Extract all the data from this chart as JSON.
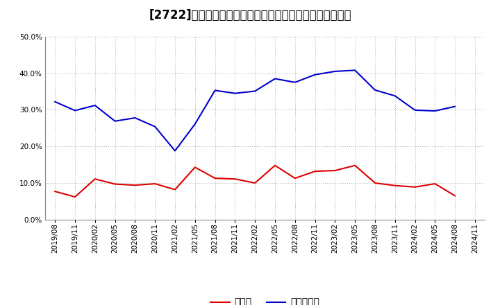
{
  "title": "[2722]　現顔金、有利子負債の総資産に対する比率の推移",
  "x_labels": [
    "2019/08",
    "2019/11",
    "2020/02",
    "2020/05",
    "2020/08",
    "2020/11",
    "2021/02",
    "2021/05",
    "2021/08",
    "2021/11",
    "2022/02",
    "2022/05",
    "2022/08",
    "2022/11",
    "2023/02",
    "2023/05",
    "2023/08",
    "2023/11",
    "2024/02",
    "2024/05",
    "2024/08",
    "2024/11"
  ],
  "cash": [
    0.077,
    0.062,
    0.111,
    0.097,
    0.094,
    0.098,
    0.082,
    0.143,
    0.113,
    0.111,
    0.1,
    0.148,
    0.113,
    0.132,
    0.134,
    0.148,
    0.1,
    0.093,
    0.089,
    0.098,
    0.065,
    null
  ],
  "debt": [
    0.322,
    0.298,
    0.312,
    0.269,
    0.278,
    0.254,
    0.188,
    0.261,
    0.353,
    0.345,
    0.351,
    0.385,
    0.375,
    0.396,
    0.405,
    0.408,
    0.354,
    0.338,
    0.299,
    0.297,
    0.309,
    null
  ],
  "cash_color": "#dd0000",
  "debt_color": "#0000cc",
  "bg_color": "#ffffff",
  "plot_bg_color": "#ffffff",
  "grid_color": "#aaaaaa",
  "ylim": [
    0.0,
    0.5
  ],
  "yticks": [
    0.0,
    0.1,
    0.2,
    0.3,
    0.4,
    0.5
  ],
  "legend_cash": "現顔金",
  "legend_debt": "有利子負債",
  "title_fontsize": 12,
  "legend_fontsize": 10,
  "tick_fontsize": 7.5
}
